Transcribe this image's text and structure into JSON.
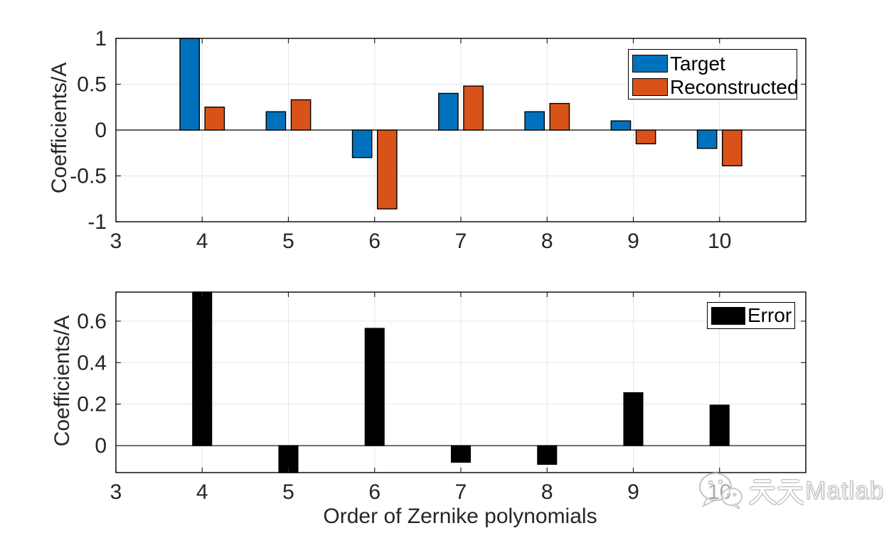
{
  "watermark": {
    "text": "天天Matlab",
    "text_cjk": "天天",
    "text_latin": "Matlab"
  },
  "chart_data": [
    {
      "type": "bar",
      "title": "",
      "categories": [
        4,
        5,
        6,
        7,
        8,
        9,
        10
      ],
      "series": [
        {
          "name": "Target",
          "color": "#0072BD",
          "values": [
            1.0,
            0.2,
            -0.3,
            0.4,
            0.2,
            0.1,
            -0.2
          ]
        },
        {
          "name": "Reconstructed",
          "color": "#D95319",
          "values": [
            0.25,
            0.33,
            -0.86,
            0.48,
            0.29,
            -0.15,
            -0.39
          ]
        }
      ],
      "xlabel": "",
      "ylabel": "Coefficients/A",
      "xlim": [
        3,
        11
      ],
      "ylim": [
        -1,
        1
      ],
      "xticks": [
        3,
        4,
        5,
        6,
        7,
        8,
        9,
        10
      ],
      "yticks": [
        -1,
        -0.5,
        0,
        0.5,
        1
      ],
      "grid": true,
      "grid_color": "#e6e6e6",
      "legend": {
        "position": "top-right-inside",
        "entries": [
          "Target",
          "Reconstructed"
        ]
      }
    },
    {
      "type": "bar",
      "title": "",
      "categories": [
        4,
        5,
        6,
        7,
        8,
        9,
        10
      ],
      "series": [
        {
          "name": "Error",
          "color": "#000000",
          "values": [
            0.75,
            -0.13,
            0.565,
            -0.08,
            -0.09,
            0.255,
            0.195
          ]
        }
      ],
      "xlabel": "Order of Zernike polynomials",
      "ylabel": "Coefficients/A",
      "xlim": [
        3,
        11
      ],
      "ylim": [
        -0.13,
        0.74
      ],
      "xticks": [
        3,
        4,
        5,
        6,
        7,
        8,
        9,
        10
      ],
      "yticks": [
        0,
        0.2,
        0.4,
        0.6
      ],
      "grid": true,
      "grid_color": "#e6e6e6",
      "legend": {
        "position": "top-right-inside",
        "entries": [
          "Error"
        ]
      }
    }
  ]
}
